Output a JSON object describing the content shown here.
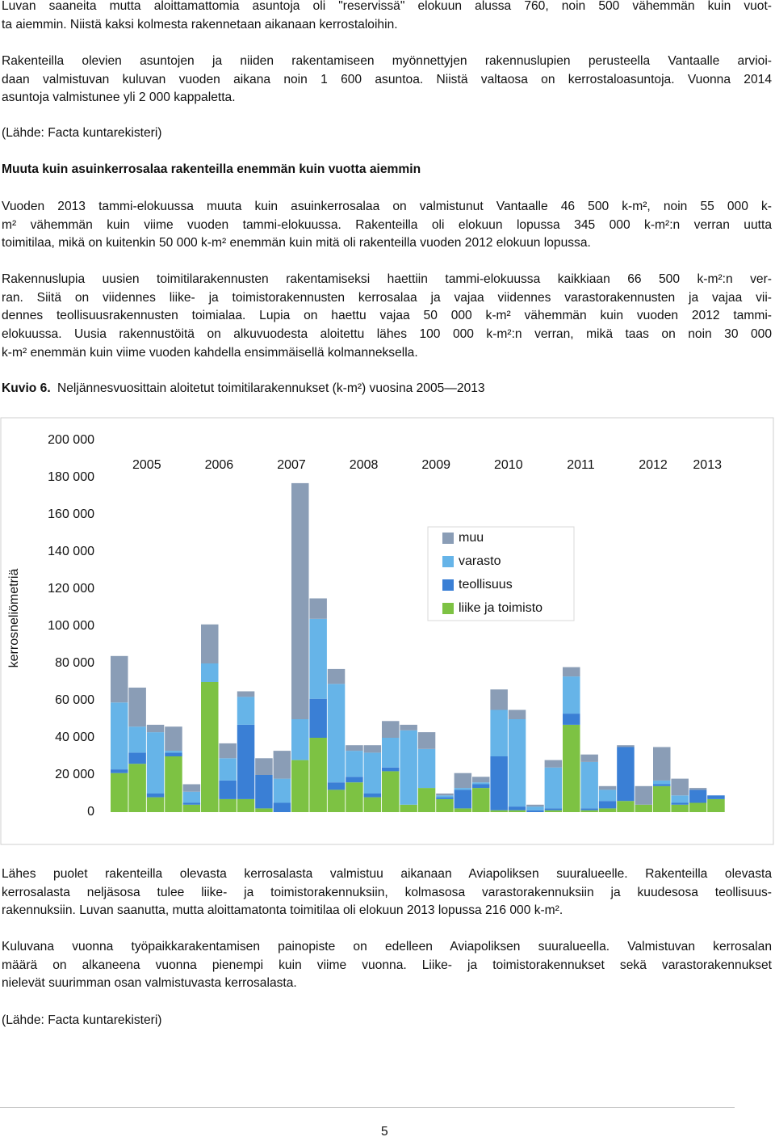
{
  "intro": [
    [
      "Luvan saaneita mutta aloittamattomia asuntoja oli \"reservissä\" elokuun alussa 760, noin 500 vähemmän kuin vuot-",
      "ta aiemmin. Niistä kaksi kolmesta rakennetaan aikanaan kerrostaloihin."
    ],
    [
      "Rakenteilla olevien asuntojen ja niiden rakentamiseen myönnettyjen rakennuslupien perusteella Vantaalle arvioi-",
      "daan valmistuvan kuluvan vuoden aikana noin 1 600 asuntoa. Niistä valtaosa on kerrostaloasuntoja. Vuonna 2014",
      "asuntoja valmistunee yli 2 000 kappaletta."
    ]
  ],
  "source_top": "(Lähde: Facta kuntarekisteri)",
  "heading": "Muuta kuin asuinkerrosalaa rakenteilla enemmän kuin vuotta aiemmin",
  "body": [
    [
      "Vuoden 2013 tammi-elokuussa muuta kuin asuinkerrosalaa on valmistunut Vantaalle 46 500 k-m², noin 55 000 k-",
      "m² vähemmän kuin viime vuoden tammi-elokuussa. Rakenteilla oli elokuun lopussa 345 000 k-m²:n verran uutta",
      "toimitilaa, mikä on kuitenkin 50 000 k-m² enemmän kuin mitä oli rakenteilla vuoden 2012 elokuun lopussa."
    ],
    [
      "Rakennuslupia uusien toimitilarakennusten rakentamiseksi haettiin tammi-elokuussa kaikkiaan 66 500 k-m²:n ver-",
      "ran. Siitä on viidennes liike- ja toimistorakennusten kerrosalaa ja vajaa viidennes varastorakennusten ja vajaa vii-",
      "dennes teollisuusrakennusten toimialaa. Lupia on haettu vajaa 50 000 k-m² vähemmän kuin vuoden 2012 tammi-",
      "elokuussa. Uusia rakennustöitä on alkuvuodesta aloitettu lähes 100 000 k-m²:n verran, mikä taas on noin 30 000",
      "k-m² enemmän kuin viime vuoden kahdella ensimmäisellä kolmanneksella."
    ]
  ],
  "figure_caption": {
    "label": "Kuvio 6.",
    "text": "Neljännesvuosittain aloitetut toimitilarakennukset (k-m²) vuosina 2005—2013"
  },
  "chart_data": {
    "type": "stacked-bar",
    "y_axis_label": "kerrosneliömetriä",
    "categories": [
      "2005",
      null,
      null,
      null,
      "2006",
      null,
      null,
      null,
      "2007",
      null,
      null,
      null,
      "2008",
      null,
      null,
      null,
      "2009",
      null,
      null,
      null,
      "2010",
      null,
      null,
      null,
      "2011",
      null,
      null,
      null,
      "2012",
      null,
      null,
      null,
      "2013",
      null
    ],
    "series": [
      {
        "name": "liike ja toimisto",
        "color": "#7dc243",
        "values": [
          21000,
          26000,
          8000,
          30000,
          4000,
          70000,
          7000,
          7000,
          2000,
          0,
          28000,
          40000,
          12000,
          16000,
          8000,
          22000,
          4000,
          13000,
          7000,
          2000,
          13000,
          1000,
          1000,
          0,
          1000,
          47000,
          1000,
          2000,
          6000,
          4000,
          14000,
          4000,
          5000,
          7000
        ]
      },
      {
        "name": "teollisuus",
        "color": "#3a7fd5",
        "values": [
          2000,
          6000,
          2000,
          2000,
          1000,
          0,
          10000,
          40000,
          18000,
          5000,
          0,
          21000,
          4000,
          3000,
          2000,
          2000,
          0,
          0,
          1000,
          10000,
          2000,
          29000,
          2000,
          1000,
          1000,
          6000,
          1000,
          4000,
          29000,
          0,
          1000,
          1000,
          7000,
          2000
        ]
      },
      {
        "name": "varasto",
        "color": "#66b4e8",
        "values": [
          36000,
          14000,
          33000,
          1000,
          6000,
          10000,
          12000,
          15000,
          0,
          13000,
          22000,
          43000,
          53000,
          14000,
          22000,
          16000,
          40000,
          21000,
          1000,
          1000,
          1000,
          25000,
          47000,
          2000,
          22000,
          20000,
          25000,
          6000,
          0,
          0,
          2000,
          4000,
          0,
          0
        ]
      },
      {
        "name": "muu",
        "color": "#8a9db6",
        "values": [
          25000,
          21000,
          4000,
          13000,
          4000,
          21000,
          8000,
          3000,
          9000,
          15000,
          127000,
          11000,
          8000,
          3000,
          4000,
          9000,
          3000,
          9000,
          1000,
          8000,
          3000,
          11000,
          5000,
          1000,
          4000,
          5000,
          4000,
          2000,
          1000,
          10000,
          18000,
          9000,
          1000,
          0
        ]
      }
    ],
    "ylim": [
      0,
      200000
    ],
    "yticks": [
      0,
      {
        "value": 20000,
        "label": "20 000"
      },
      {
        "value": 40000,
        "label": "40 000"
      },
      {
        "value": 60000,
        "label": "60 000"
      },
      {
        "value": 80000,
        "label": "80 000"
      },
      {
        "value": 100000,
        "label": "100 000"
      },
      {
        "value": 120000,
        "label": "120 000"
      },
      {
        "value": 140000,
        "label": "140 000"
      },
      {
        "value": 160000,
        "label": "160 000"
      },
      {
        "value": 180000,
        "label": "180 000"
      },
      {
        "value": 200000,
        "label": "200 000"
      }
    ],
    "grid": false
  },
  "closing": [
    [
      "Lähes puolet rakenteilla olevasta kerrosalasta valmistuu aikanaan Aviapoliksen suuralueelle. Rakenteilla olevasta",
      "kerrosalasta neljäsosa tulee liike- ja toimistorakennuksiin, kolmasosa varastorakennuksiin ja kuudesosa teollisuus-",
      "rakennuksiin. Luvan saanutta, mutta aloittamatonta toimitilaa oli elokuun 2013 lopussa 216 000 k-m²."
    ],
    [
      "Kuluvana vuonna työpaikkarakentamisen painopiste on edelleen Aviapoliksen suuralueella. Valmistuvan kerrosalan",
      "määrä on alkaneena vuonna pienempi kuin viime vuonna. Liike- ja toimistorakennukset sekä varastorakennukset",
      "nielevät suurimman osan valmistuvasta kerrosalasta."
    ]
  ],
  "source_bottom": "(Lähde: Facta kuntarekisteri)",
  "page_number": "5"
}
